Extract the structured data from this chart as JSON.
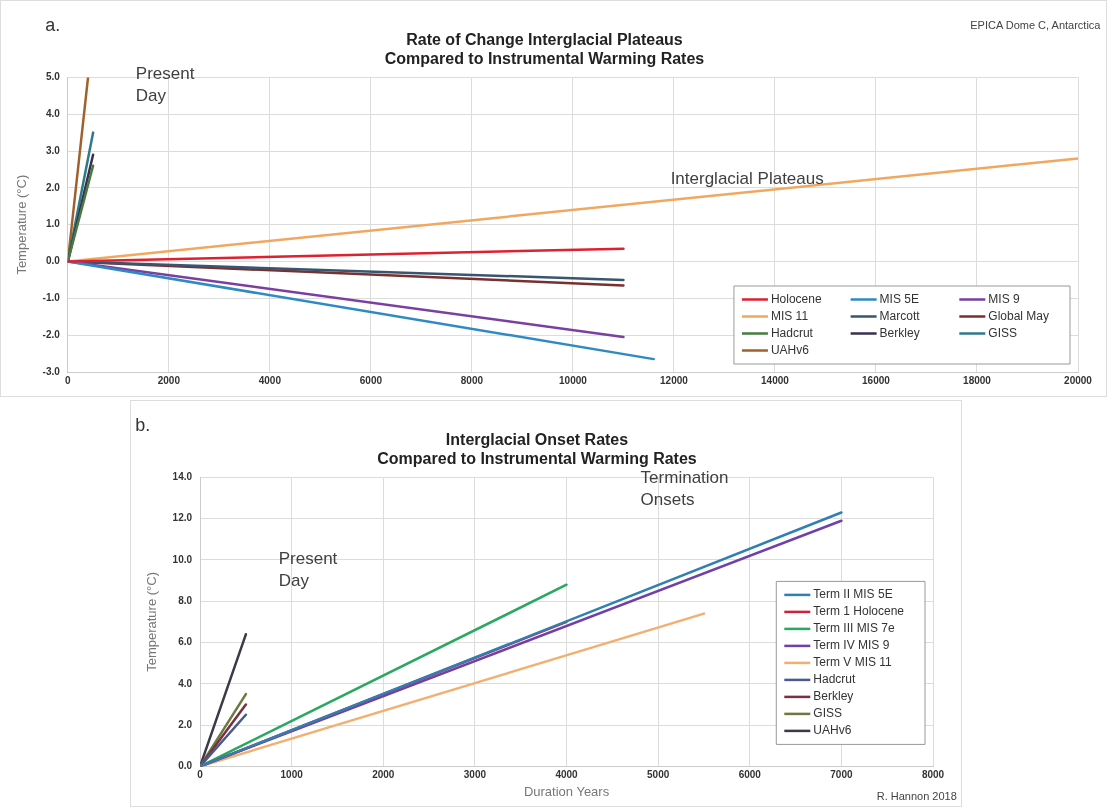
{
  "chart_data": [
    {
      "type": "line",
      "title": "Rate of Change Interglacial Plateaus\nCompared to Instrumental Warming Rates",
      "ylabel": "Temperature (°C)",
      "xlim": [
        0,
        20000
      ],
      "xticks": [
        0,
        2000,
        4000,
        6000,
        8000,
        10000,
        12000,
        14000,
        16000,
        18000,
        20000
      ],
      "ylim": [
        -3,
        5
      ],
      "yticks": [
        {
          "value": -3,
          "label": "-3.0"
        },
        {
          "value": -2,
          "label": "-2.0"
        },
        {
          "value": -1,
          "label": "-1.0"
        },
        {
          "value": 0,
          "label": "0.0"
        },
        {
          "value": 1,
          "label": "1.0"
        },
        {
          "value": 2,
          "label": "2.0"
        },
        {
          "value": 3,
          "label": "3.0"
        },
        {
          "value": 4,
          "label": "4.0"
        },
        {
          "value": 5,
          "label": "5.0"
        }
      ],
      "grid": true,
      "legend": "bottom right",
      "marker": "none",
      "line_style": "solid",
      "annotations": [
        "a.",
        "EPICA Dome C, Antarctica",
        "Present Day",
        "Interglacial Plateaus"
      ],
      "series": [
        {
          "name": "Holocene",
          "color": "#e02030",
          "x": [
            0,
            11000
          ],
          "values": [
            0,
            0.35
          ]
        },
        {
          "name": "MIS 5E",
          "color": "#2f8ac4",
          "x": [
            0,
            11600
          ],
          "values": [
            0,
            -2.65
          ]
        },
        {
          "name": "MIS 9",
          "color": "#7a3fa0",
          "x": [
            0,
            11000
          ],
          "values": [
            0,
            -2.05
          ]
        },
        {
          "name": "MIS 11",
          "color": "#f0a860",
          "x": [
            0,
            20000
          ],
          "values": [
            0,
            2.8
          ]
        },
        {
          "name": "Marcott",
          "color": "#3a5570",
          "x": [
            0,
            11000
          ],
          "values": [
            0,
            -0.5
          ]
        },
        {
          "name": "Global May",
          "color": "#7a3030",
          "x": [
            0,
            11000
          ],
          "values": [
            0,
            -0.65
          ]
        },
        {
          "name": "Hadcrut",
          "color": "#4a7a40",
          "x": [
            0,
            500
          ],
          "values": [
            0,
            2.6
          ]
        },
        {
          "name": "Berkley",
          "color": "#3a3050",
          "x": [
            0,
            500
          ],
          "values": [
            0,
            2.9
          ]
        },
        {
          "name": "GISS",
          "color": "#2e7a8a",
          "x": [
            0,
            500
          ],
          "values": [
            0,
            3.5
          ]
        },
        {
          "name": "UAHv6",
          "color": "#a0622a",
          "x": [
            0,
            400
          ],
          "values": [
            0,
            5.0
          ]
        }
      ]
    },
    {
      "type": "line",
      "title": "Interglacial Onset Rates\nCompared to Instrumental Warming Rates",
      "xlabel": "Duration Years",
      "ylabel": "Temperature (°C)",
      "xlim": [
        0,
        8000
      ],
      "xticks": [
        0,
        1000,
        2000,
        3000,
        4000,
        5000,
        6000,
        7000,
        8000
      ],
      "ylim": [
        0,
        14
      ],
      "yticks": [
        {
          "value": 0,
          "label": "0.0"
        },
        {
          "value": 2,
          "label": "2.0"
        },
        {
          "value": 4,
          "label": "4.0"
        },
        {
          "value": 6,
          "label": "6.0"
        },
        {
          "value": 8,
          "label": "8.0"
        },
        {
          "value": 10,
          "label": "10.0"
        },
        {
          "value": 12,
          "label": "12.0"
        },
        {
          "value": 14,
          "label": "14.0"
        }
      ],
      "grid": true,
      "legend": "right",
      "marker": "none",
      "line_style": "solid",
      "annotations": [
        "b.",
        "R. Hannon 2018",
        "Present Day",
        "Termination Onsets"
      ],
      "series": [
        {
          "name": "Term II MIS 5E",
          "color": "#2f7fb0",
          "x": [
            0,
            7000
          ],
          "values": [
            0,
            12.3
          ]
        },
        {
          "name": "Term 1 Holocene",
          "color": "#d0203a",
          "x": [
            0,
            4000
          ],
          "values": [
            0,
            7.0
          ]
        },
        {
          "name": "Term III MIS 7e",
          "color": "#2aa860",
          "x": [
            0,
            4000
          ],
          "values": [
            0,
            8.8
          ]
        },
        {
          "name": "Term IV MIS 9",
          "color": "#7040a8",
          "x": [
            0,
            7000
          ],
          "values": [
            0,
            11.9
          ]
        },
        {
          "name": "Term V MIS 11",
          "color": "#f2b070",
          "x": [
            0,
            5500
          ],
          "values": [
            0,
            7.4
          ]
        },
        {
          "name": "Hadcrut",
          "color": "#4a5a90",
          "x": [
            0,
            500
          ],
          "values": [
            0,
            2.5
          ]
        },
        {
          "name": "Berkley",
          "color": "#7a3040",
          "x": [
            0,
            500
          ],
          "values": [
            0,
            3.0
          ]
        },
        {
          "name": "GISS",
          "color": "#6a7a40",
          "x": [
            0,
            500
          ],
          "values": [
            0,
            3.5
          ]
        },
        {
          "name": "UAHv6",
          "color": "#3a3a4a",
          "x": [
            0,
            500
          ],
          "values": [
            0,
            6.4
          ]
        }
      ]
    }
  ]
}
